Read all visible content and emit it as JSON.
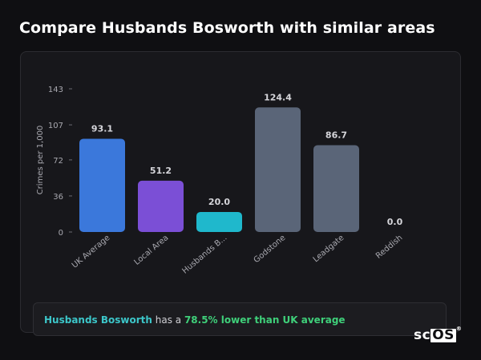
{
  "page": {
    "title": "Compare Husbands Bosworth with similar areas"
  },
  "chart_data": {
    "type": "bar",
    "ylabel": "Crimes per 1,000",
    "xlabel": "",
    "ylim": [
      0,
      143
    ],
    "yticks": [
      0,
      36,
      72,
      107,
      143
    ],
    "grid": false,
    "categories": [
      "UK Average",
      "Local Area",
      "Husbands B...",
      "Godstone",
      "Leadgate",
      "Reddish"
    ],
    "values": [
      93.1,
      51.2,
      20.0,
      124.4,
      86.7,
      0.0
    ],
    "value_labels": [
      "93.1",
      "51.2",
      "20.0",
      "124.4",
      "86.7",
      "0.0"
    ],
    "colors": [
      "#3b78db",
      "#7b4fd6",
      "#1fb8cc",
      "#5a6578",
      "#5a6578",
      "#5a6578"
    ]
  },
  "callout": {
    "area": "Husbands Bosworth",
    "middle": " has a ",
    "difference": "78.5% lower than UK average"
  },
  "logo": {
    "prefix": "sc",
    "boxed": "OS",
    "mark": "®"
  }
}
